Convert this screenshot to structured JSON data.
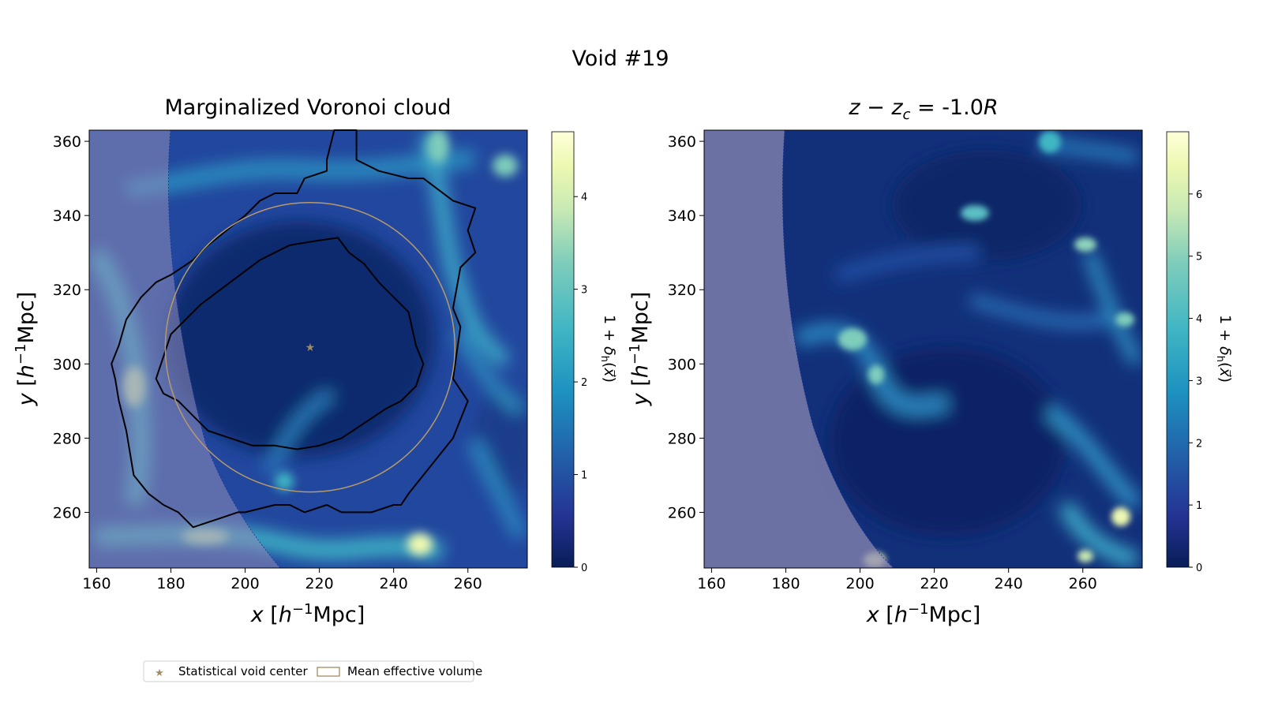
{
  "figure": {
    "suptitle": "Void #19"
  },
  "legend": {
    "placement": "bottom-left",
    "items": [
      {
        "label": "Statistical void center",
        "marker": "star",
        "color": "#a08c60"
      },
      {
        "label": "Mean effective volume",
        "marker": "rect-outline",
        "color": "#a08c60"
      }
    ]
  },
  "colors": {
    "void_center": "#a08c60",
    "effective_radius_circle": "#b89a6a",
    "contours": "#000000",
    "survey_mask": "#6f6ea0"
  },
  "chart_data": [
    {
      "type": "heatmap",
      "title": "Marginalized Voronoi cloud",
      "xlabel": "x [h^-1Mpc]",
      "ylabel": "y [h^-1Mpc]",
      "xlim": [
        158,
        276
      ],
      "ylim": [
        245,
        363
      ],
      "xticks": [
        160,
        180,
        200,
        220,
        240,
        260
      ],
      "yticks": [
        260,
        280,
        300,
        320,
        340,
        360
      ],
      "colorbar": {
        "label": "1 + δ_h(x⃗)",
        "range": [
          0,
          4.7
        ],
        "ticks": [
          0,
          1,
          2,
          3,
          4
        ],
        "colormap": "YlGnBu_r"
      },
      "void_center": {
        "x": 217.5,
        "y": 304.5
      },
      "effective_radius": 39,
      "contours": [
        {
          "level": "outer",
          "points": [
            [
              224,
              363
            ],
            [
              230,
              363
            ],
            [
              230,
              355
            ],
            [
              236,
              352
            ],
            [
              244,
              350
            ],
            [
              248,
              350
            ],
            [
              256,
              344
            ],
            [
              262,
              342
            ],
            [
              260,
              336
            ],
            [
              262,
              330
            ],
            [
              258,
              326
            ],
            [
              256,
              315
            ],
            [
              258,
              310
            ],
            [
              256,
              296
            ],
            [
              260,
              290
            ],
            [
              256,
              280
            ],
            [
              248,
              270
            ],
            [
              244,
              265
            ],
            [
              242,
              262
            ],
            [
              240,
              262
            ],
            [
              234,
              260
            ],
            [
              226,
              260
            ],
            [
              222,
              262
            ],
            [
              216,
              260
            ],
            [
              212,
              262
            ],
            [
              208,
              262
            ],
            [
              200,
              260
            ],
            [
              198,
              260
            ],
            [
              192,
              258
            ],
            [
              186,
              256
            ],
            [
              182,
              260
            ],
            [
              178,
              262
            ],
            [
              174,
              265
            ],
            [
              170,
              270
            ],
            [
              168,
              282
            ],
            [
              166,
              290
            ],
            [
              165,
              296
            ],
            [
              164,
              300
            ],
            [
              166,
              305
            ],
            [
              168,
              312
            ],
            [
              172,
              318
            ],
            [
              176,
              322
            ],
            [
              180,
              324
            ],
            [
              186,
              328
            ],
            [
              190,
              332
            ],
            [
              195,
              336
            ],
            [
              200,
              340
            ],
            [
              204,
              344
            ],
            [
              208,
              346
            ],
            [
              214,
              346
            ],
            [
              216,
              350
            ],
            [
              222,
              352
            ],
            [
              222,
              355
            ]
          ]
        },
        {
          "level": "inner",
          "points": [
            [
              225,
              334
            ],
            [
              228,
              330
            ],
            [
              232,
              327
            ],
            [
              236,
              322
            ],
            [
              240,
              318
            ],
            [
              244,
              314
            ],
            [
              246,
              305
            ],
            [
              248,
              300
            ],
            [
              246,
              294
            ],
            [
              242,
              290
            ],
            [
              238,
              288
            ],
            [
              232,
              284
            ],
            [
              226,
              280
            ],
            [
              220,
              278
            ],
            [
              214,
              277
            ],
            [
              208,
              278
            ],
            [
              202,
              278
            ],
            [
              196,
              280
            ],
            [
              190,
              282
            ],
            [
              186,
              286
            ],
            [
              182,
              290
            ],
            [
              178,
              292
            ],
            [
              176,
              296
            ],
            [
              178,
              302
            ],
            [
              180,
              308
            ],
            [
              184,
              312
            ],
            [
              188,
              316
            ],
            [
              192,
              319
            ],
            [
              196,
              322
            ],
            [
              200,
              325
            ],
            [
              204,
              328
            ],
            [
              208,
              330
            ],
            [
              212,
              332
            ],
            [
              218,
              333
            ]
          ]
        }
      ]
    },
    {
      "type": "heatmap",
      "title": "z − z_c = -1.0R",
      "xlabel": "x [h^-1Mpc]",
      "ylabel": "y [h^-1Mpc]",
      "xlim": [
        158,
        276
      ],
      "ylim": [
        245,
        363
      ],
      "xticks": [
        160,
        180,
        200,
        220,
        240,
        260
      ],
      "yticks": [
        260,
        280,
        300,
        320,
        340,
        360
      ],
      "colorbar": {
        "label": "1 + δ_h(x⃗)",
        "range": [
          0,
          7
        ],
        "ticks": [
          0,
          1,
          2,
          3,
          4,
          5,
          6
        ],
        "colormap": "YlGnBu_r"
      }
    }
  ]
}
